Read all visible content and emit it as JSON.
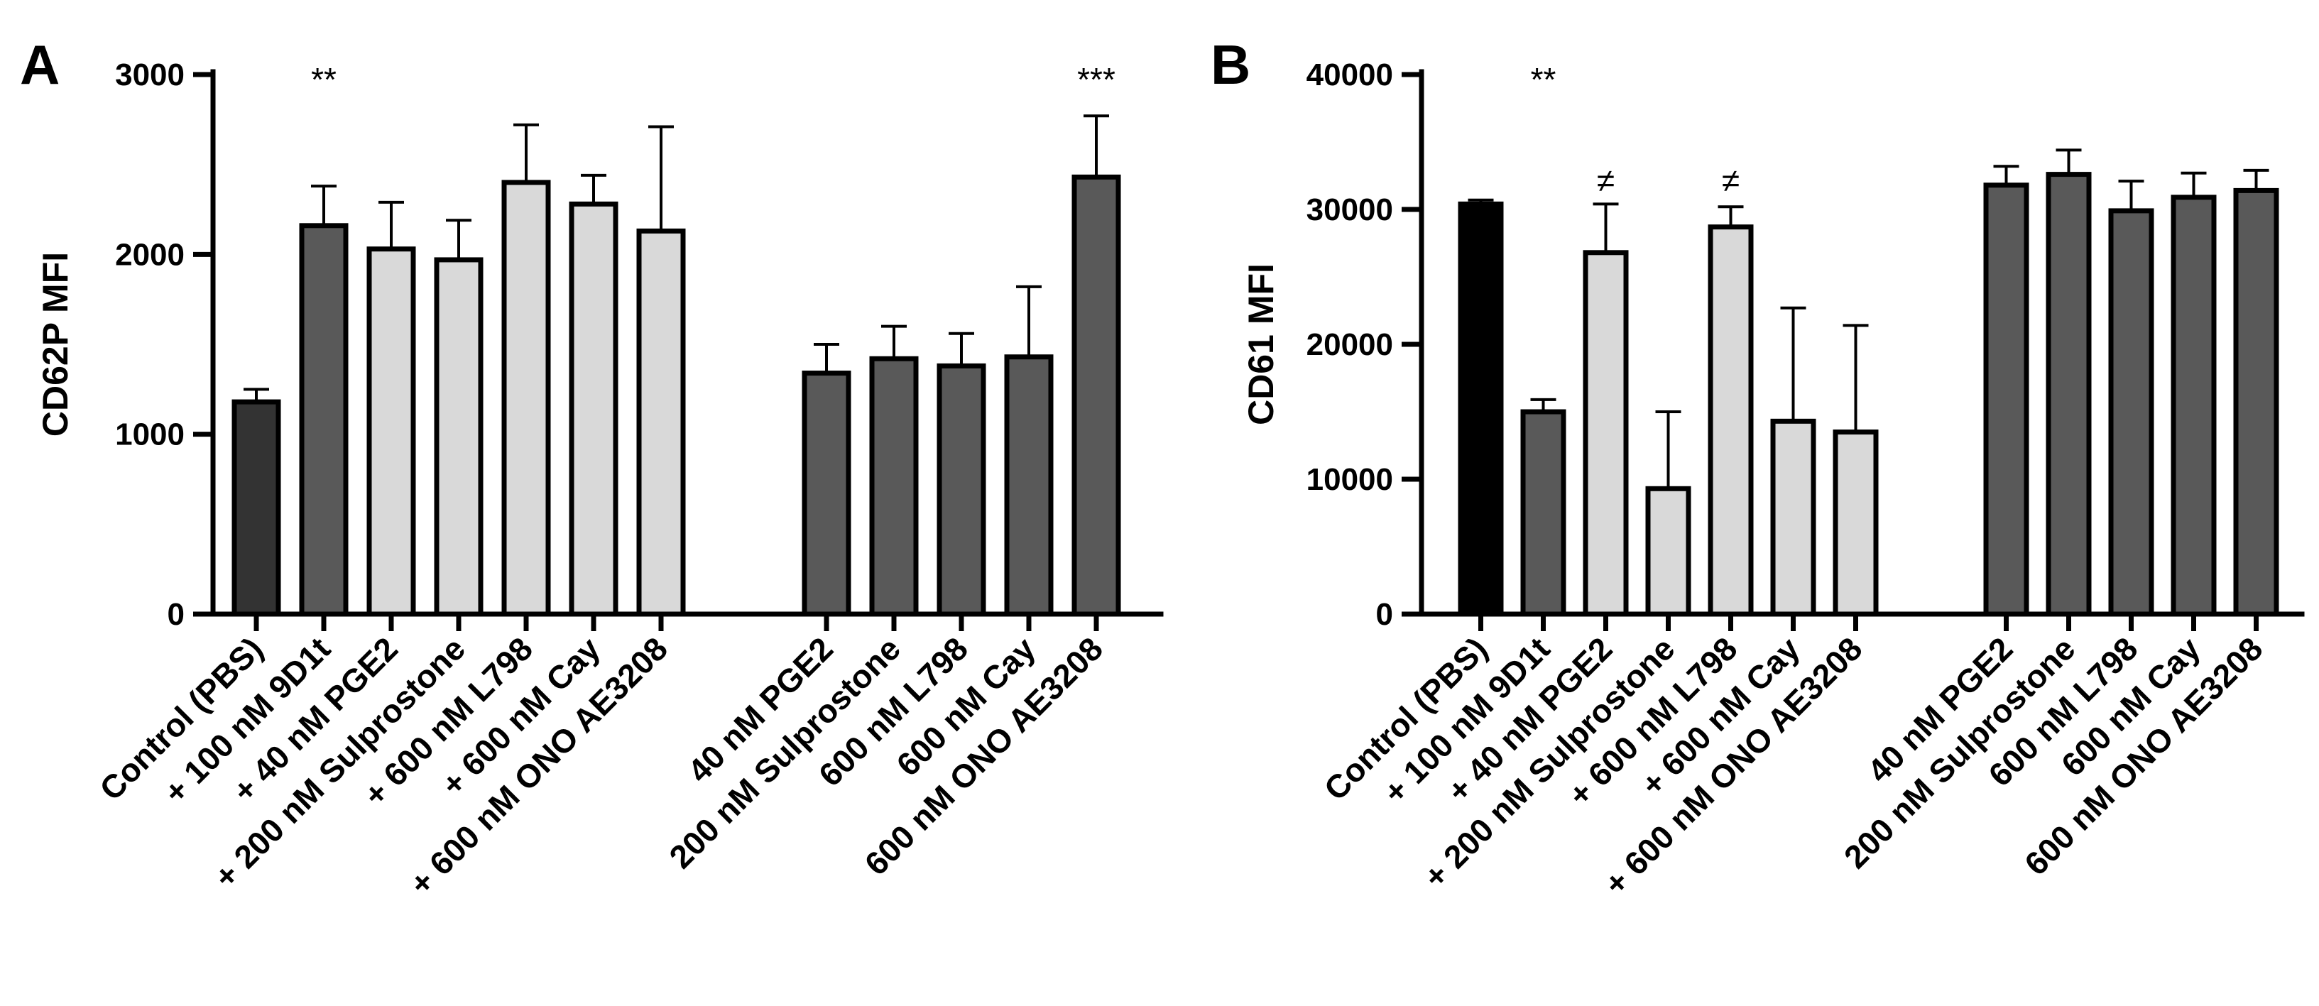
{
  "chart_data": [
    {
      "panel": "A",
      "type": "bar",
      "ylabel": "CD62P MFI",
      "ylim": [
        0,
        3000
      ],
      "yticks": [
        0,
        1000,
        2000,
        3000
      ],
      "ytick_labels": [
        "0",
        "1000",
        "2000",
        "3000"
      ],
      "categories": [
        "Control (PBS)",
        "+ 100 nM 9D1t",
        "+ 40 nM PGE2",
        "+ 200 nM Sulprostone",
        "+ 600 nM L798",
        "+ 600 nM Cay",
        "+ 600 nM ONO AE3208",
        "40 nM PGE2",
        "200 nM Sulprostone",
        "600 nM L798",
        "600 nM Cay",
        "600 nM ONO AE3208"
      ],
      "groups": [
        0,
        0,
        0,
        0,
        0,
        0,
        0,
        1,
        1,
        1,
        1,
        1
      ],
      "values": [
        1180,
        2160,
        2030,
        1970,
        2400,
        2280,
        2130,
        1340,
        1420,
        1380,
        1430,
        2430
      ],
      "errors": [
        70,
        220,
        260,
        220,
        320,
        160,
        580,
        160,
        180,
        180,
        390,
        340
      ],
      "colors": [
        "#333333",
        "#595959",
        "#d9d9d9",
        "#d9d9d9",
        "#d9d9d9",
        "#d9d9d9",
        "#d9d9d9",
        "#595959",
        "#595959",
        "#595959",
        "#595959",
        "#595959"
      ],
      "annotations": [
        "",
        "**",
        "",
        "",
        "",
        "",
        "",
        "",
        "",
        "",
        "",
        "***"
      ]
    },
    {
      "panel": "B",
      "type": "bar",
      "ylabel": "CD61 MFI",
      "ylim": [
        0,
        40000
      ],
      "yticks": [
        0,
        10000,
        20000,
        30000,
        40000
      ],
      "ytick_labels": [
        "0",
        "10000",
        "20000",
        "30000",
        "40000"
      ],
      "categories": [
        "Control (PBS)",
        "+ 100 nM 9D1t",
        "+ 40 nM PGE2",
        "+ 200 nM Sulprostone",
        "+ 600 nM L798",
        "+ 600 nM Cay",
        "+ 600 nM ONO AE3208",
        "40 nM PGE2",
        "200 nM Sulprostone",
        "600 nM L798",
        "600 nM Cay",
        "600 nM ONO AE3208"
      ],
      "groups": [
        0,
        0,
        0,
        0,
        0,
        0,
        0,
        1,
        1,
        1,
        1,
        1
      ],
      "values": [
        30400,
        15000,
        26800,
        9300,
        28700,
        14300,
        13500,
        31800,
        32600,
        29900,
        30900,
        31400
      ],
      "errors": [
        300,
        900,
        3600,
        5700,
        1500,
        8400,
        7900,
        1400,
        1800,
        2200,
        1800,
        1500
      ],
      "colors": [
        "#000000",
        "#595959",
        "#d9d9d9",
        "#d9d9d9",
        "#d9d9d9",
        "#d9d9d9",
        "#d9d9d9",
        "#595959",
        "#595959",
        "#595959",
        "#595959",
        "#595959"
      ],
      "annotations": [
        "",
        "**",
        "≠",
        "",
        "≠",
        "",
        "",
        "",
        "",
        "",
        "",
        ""
      ]
    }
  ]
}
